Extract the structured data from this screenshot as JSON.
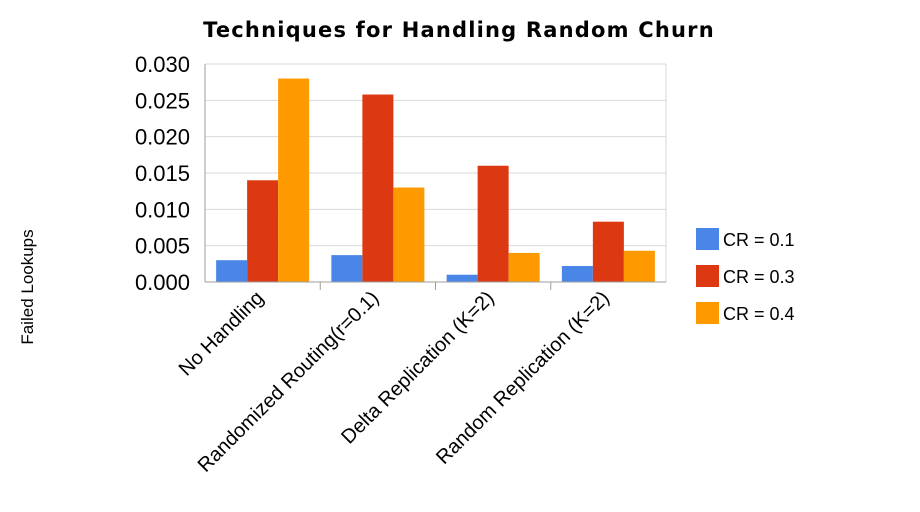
{
  "chart_data": {
    "type": "bar",
    "title": "Techniques for Handling Random Churn",
    "xlabel": "",
    "ylabel": "Failed Lookups",
    "categories": [
      "No Handling",
      "Randomized Routing(r=0.1)",
      "Delta Replication  (K=2)",
      "Random Replication (K=2)"
    ],
    "series": [
      {
        "name": "CR = 0.1",
        "color": "#4a86e8",
        "values": [
          0.003,
          0.0037,
          0.001,
          0.0022
        ]
      },
      {
        "name": "CR = 0.3",
        "color": "#dc3912",
        "values": [
          0.014,
          0.0258,
          0.016,
          0.0083
        ]
      },
      {
        "name": "CR = 0.4",
        "color": "#ff9900",
        "values": [
          0.028,
          0.013,
          0.004,
          0.0043
        ]
      }
    ],
    "ylim": [
      0,
      0.03
    ],
    "yticks": [
      "0.000",
      "0.005",
      "0.010",
      "0.015",
      "0.020",
      "0.025",
      "0.030"
    ],
    "grid": true,
    "legend_position": "right"
  }
}
